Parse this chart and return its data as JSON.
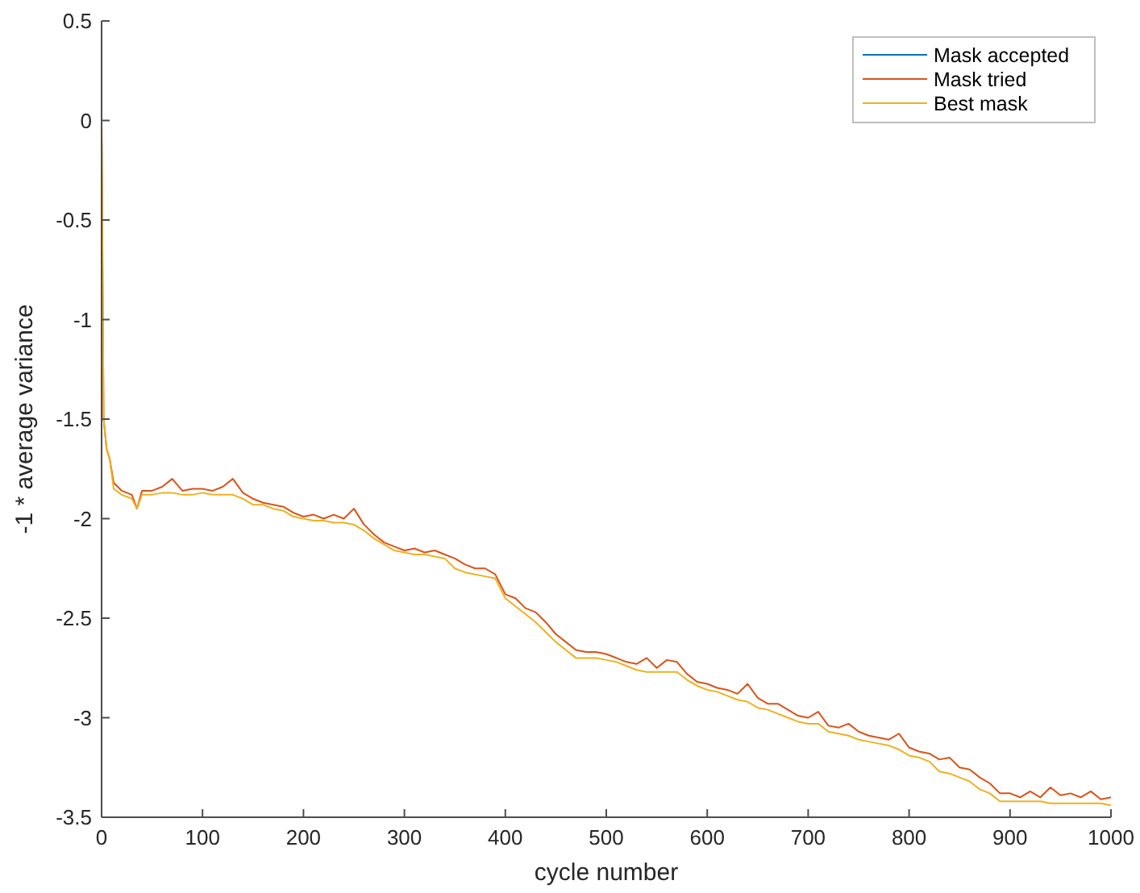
{
  "chart_data": {
    "type": "line",
    "xlabel": "cycle number",
    "ylabel": "-1 * average variance",
    "xlim": [
      0,
      1000
    ],
    "ylim": [
      -3.5,
      0.5
    ],
    "xticks": [
      0,
      100,
      200,
      300,
      400,
      500,
      600,
      700,
      800,
      900,
      1000
    ],
    "yticks": [
      -3.5,
      -3,
      -2.5,
      -2,
      -1.5,
      -1,
      -0.5,
      0,
      0.5
    ],
    "grid": false,
    "legend": "top right",
    "line_style": "solid",
    "marker": "none",
    "x": [
      0,
      2,
      5,
      8,
      12,
      20,
      30,
      35,
      40,
      50,
      60,
      70,
      80,
      90,
      100,
      110,
      120,
      130,
      140,
      150,
      160,
      170,
      180,
      190,
      200,
      210,
      220,
      230,
      240,
      250,
      260,
      270,
      280,
      290,
      300,
      310,
      320,
      330,
      340,
      350,
      360,
      370,
      380,
      390,
      400,
      410,
      420,
      430,
      440,
      450,
      460,
      470,
      480,
      490,
      500,
      510,
      520,
      530,
      540,
      550,
      560,
      570,
      580,
      590,
      600,
      610,
      620,
      630,
      640,
      650,
      660,
      670,
      680,
      690,
      700,
      710,
      720,
      730,
      740,
      750,
      760,
      770,
      780,
      790,
      800,
      810,
      820,
      830,
      840,
      850,
      860,
      870,
      880,
      890,
      900,
      910,
      920,
      930,
      940,
      950,
      960,
      970,
      980,
      990,
      1000
    ],
    "series": [
      {
        "name": "Mask accepted",
        "color": "#0072bd",
        "values": [
          null,
          null,
          null,
          null,
          null,
          null,
          null,
          null,
          null,
          null,
          null,
          null,
          null,
          null,
          null,
          null,
          null,
          null,
          null,
          null,
          null,
          null,
          null,
          null,
          null,
          null,
          null,
          null,
          null,
          null,
          null,
          null,
          null,
          null,
          null,
          null,
          null,
          null,
          null,
          null,
          null,
          null,
          null,
          null,
          null,
          null,
          null,
          null,
          null,
          null,
          null,
          null,
          null,
          null,
          null,
          null,
          null,
          null,
          null,
          null,
          null,
          null,
          null,
          null,
          null,
          null,
          null,
          null,
          null,
          null,
          null,
          null,
          null,
          null,
          null,
          null,
          null,
          null,
          null,
          null,
          null,
          null,
          null,
          null,
          null,
          null,
          null,
          null,
          null,
          null,
          null,
          null,
          null,
          null,
          null,
          null,
          null,
          null,
          null,
          null,
          null,
          null,
          null,
          null,
          null
        ]
      },
      {
        "name": "Mask tried",
        "color": "#d95319",
        "values": [
          0,
          -1.5,
          -1.65,
          -1.7,
          -1.82,
          -1.86,
          -1.88,
          -1.95,
          -1.86,
          -1.86,
          -1.84,
          -1.8,
          -1.86,
          -1.85,
          -1.85,
          -1.86,
          -1.84,
          -1.8,
          -1.87,
          -1.9,
          -1.92,
          -1.93,
          -1.94,
          -1.97,
          -1.99,
          -1.98,
          -2.0,
          -1.98,
          -2.0,
          -1.95,
          -2.03,
          -2.08,
          -2.12,
          -2.14,
          -2.16,
          -2.15,
          -2.17,
          -2.16,
          -2.18,
          -2.2,
          -2.23,
          -2.25,
          -2.25,
          -2.28,
          -2.38,
          -2.4,
          -2.45,
          -2.47,
          -2.52,
          -2.58,
          -2.62,
          -2.66,
          -2.67,
          -2.67,
          -2.68,
          -2.7,
          -2.72,
          -2.73,
          -2.7,
          -2.75,
          -2.71,
          -2.72,
          -2.78,
          -2.82,
          -2.83,
          -2.85,
          -2.86,
          -2.88,
          -2.83,
          -2.9,
          -2.93,
          -2.93,
          -2.96,
          -2.99,
          -3.0,
          -2.97,
          -3.04,
          -3.05,
          -3.03,
          -3.07,
          -3.09,
          -3.1,
          -3.11,
          -3.08,
          -3.15,
          -3.17,
          -3.18,
          -3.21,
          -3.2,
          -3.25,
          -3.26,
          -3.3,
          -3.33,
          -3.38,
          -3.38,
          -3.4,
          -3.37,
          -3.4,
          -3.35,
          -3.39,
          -3.38,
          -3.4,
          -3.37,
          -3.41,
          -3.4
        ]
      },
      {
        "name": "Best mask",
        "color": "#edb120",
        "values": [
          0,
          -1.5,
          -1.65,
          -1.7,
          -1.85,
          -1.88,
          -1.9,
          -1.95,
          -1.88,
          -1.88,
          -1.87,
          -1.87,
          -1.88,
          -1.88,
          -1.87,
          -1.88,
          -1.88,
          -1.88,
          -1.9,
          -1.93,
          -1.93,
          -1.95,
          -1.96,
          -1.99,
          -2.0,
          -2.01,
          -2.01,
          -2.02,
          -2.02,
          -2.03,
          -2.06,
          -2.1,
          -2.13,
          -2.16,
          -2.17,
          -2.18,
          -2.18,
          -2.19,
          -2.2,
          -2.25,
          -2.27,
          -2.28,
          -2.29,
          -2.3,
          -2.4,
          -2.44,
          -2.48,
          -2.52,
          -2.57,
          -2.62,
          -2.66,
          -2.7,
          -2.7,
          -2.7,
          -2.71,
          -2.72,
          -2.74,
          -2.76,
          -2.77,
          -2.77,
          -2.77,
          -2.77,
          -2.81,
          -2.84,
          -2.86,
          -2.87,
          -2.89,
          -2.91,
          -2.92,
          -2.95,
          -2.96,
          -2.98,
          -3.0,
          -3.02,
          -3.03,
          -3.03,
          -3.07,
          -3.08,
          -3.09,
          -3.11,
          -3.12,
          -3.13,
          -3.14,
          -3.16,
          -3.19,
          -3.2,
          -3.22,
          -3.27,
          -3.28,
          -3.3,
          -3.32,
          -3.36,
          -3.38,
          -3.42,
          -3.42,
          -3.42,
          -3.42,
          -3.42,
          -3.43,
          -3.43,
          -3.43,
          -3.43,
          -3.43,
          -3.43,
          -3.44
        ]
      }
    ]
  }
}
